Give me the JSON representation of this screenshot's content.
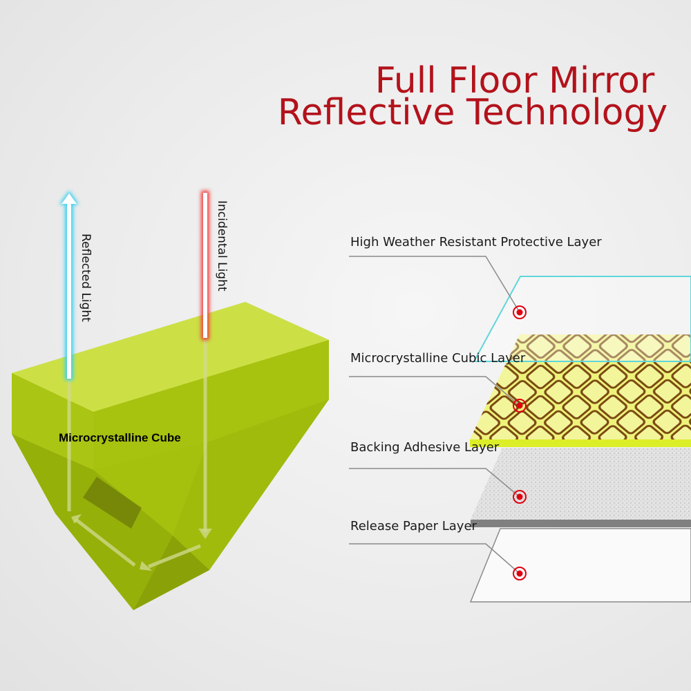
{
  "title": {
    "line1": "Full Floor Mirror",
    "line2": "Reflective Technology",
    "color": "#b3121b"
  },
  "cube": {
    "label": "Microcrystalline Cube",
    "color": "#b5d21a",
    "reflected_label": "Reflected Light",
    "incidental_label": "Incidental Light",
    "reflected_color": "#39d0f0",
    "incidental_color": "#f04040"
  },
  "layers": [
    {
      "label": "High Weather Resistant Protective Layer",
      "color": "#5fd6dc"
    },
    {
      "label": "Microcrystalline Cubic Layer",
      "color": "#eef27a"
    },
    {
      "label": "Backing Adhesive Layer",
      "color": "#d8d8d8"
    },
    {
      "label": "Release Paper Layer",
      "color": "#fafafa"
    }
  ],
  "marker_color": "#e00010"
}
